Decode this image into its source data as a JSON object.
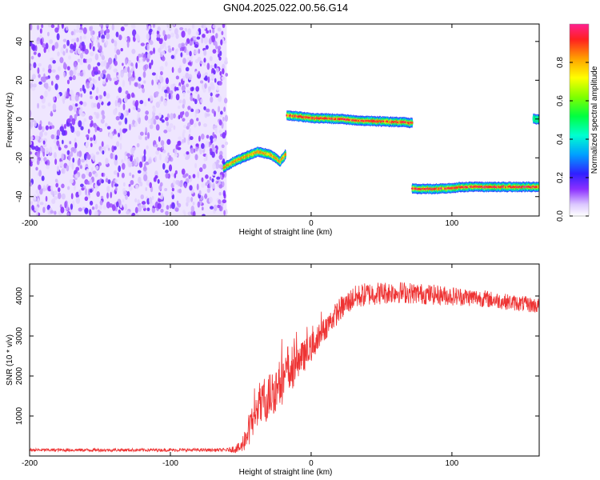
{
  "title": "GN04.2025.022.00.56.G14",
  "chart_data": [
    {
      "type": "heatmap",
      "xlabel": "Height of straight line (km)",
      "ylabel": "Frequency (Hz)",
      "xlim": [
        -200,
        162
      ],
      "ylim": [
        -50,
        49
      ],
      "xticks": [
        -200,
        -100,
        0,
        100
      ],
      "yticks": [
        -40,
        -20,
        0,
        20,
        40
      ],
      "xtick_labels": [
        "-200",
        "-100",
        "0",
        "100"
      ],
      "ytick_labels": [
        "-40",
        "-20",
        "0",
        "20",
        "40"
      ],
      "colorbar": {
        "label": "Normalized spectral amplitude",
        "range": [
          0,
          1
        ],
        "ticks": [
          0.0,
          0.2,
          0.4,
          0.6,
          0.8
        ],
        "tick_labels": [
          "0.0",
          "0.2",
          "0.4",
          "0.6",
          "0.8"
        ]
      },
      "noise_region": {
        "x": [
          -200,
          -60
        ],
        "y": [
          -50,
          49
        ],
        "level": 0.1
      },
      "ridges": [
        {
          "x": [
            -62,
            -55,
            -45,
            -38,
            -30,
            -25,
            -22,
            -18
          ],
          "y": [
            -25,
            -22,
            -19,
            -17,
            -18,
            -20,
            -22,
            -18
          ],
          "peak": 0.85
        },
        {
          "x": [
            -17,
            0,
            20,
            40,
            60,
            72
          ],
          "y": [
            2,
            0.5,
            0,
            -1,
            -1.5,
            -2
          ],
          "peak": 1.0
        },
        {
          "x": [
            72,
            90,
            110,
            130,
            150,
            162
          ],
          "y": [
            -36,
            -36,
            -35,
            -35,
            -35,
            -35
          ],
          "peak": 1.0
        },
        {
          "x": [
            158,
            162
          ],
          "y": [
            0,
            0
          ],
          "peak": 0.5
        }
      ]
    },
    {
      "type": "line",
      "xlabel": "Height of straight line (km)",
      "ylabel": "SNR (10 * v/v)",
      "xlim": [
        -200,
        162
      ],
      "ylim": [
        0,
        4800
      ],
      "xticks": [
        -200,
        -100,
        0,
        100
      ],
      "yticks": [
        1000,
        2000,
        3000,
        4000
      ],
      "xtick_labels": [
        "-200",
        "-100",
        "0",
        "100"
      ],
      "ytick_labels": [
        "1000",
        "2000",
        "3000",
        "4000"
      ],
      "color": "#ee3333",
      "x": [
        -200,
        -150,
        -100,
        -60,
        -50,
        -45,
        -40,
        -30,
        -20,
        -10,
        0,
        10,
        20,
        30,
        40,
        60,
        80,
        100,
        120,
        140,
        162
      ],
      "y": [
        150,
        150,
        150,
        150,
        200,
        600,
        1000,
        1500,
        1900,
        2300,
        2700,
        3200,
        3650,
        3950,
        4050,
        4100,
        4050,
        4000,
        3950,
        3850,
        3750
      ],
      "noise_amplitude": [
        40,
        40,
        40,
        40,
        150,
        400,
        500,
        600,
        600,
        450,
        350,
        300,
        300,
        300,
        300,
        280,
        260,
        240,
        220,
        200,
        200
      ]
    }
  ]
}
